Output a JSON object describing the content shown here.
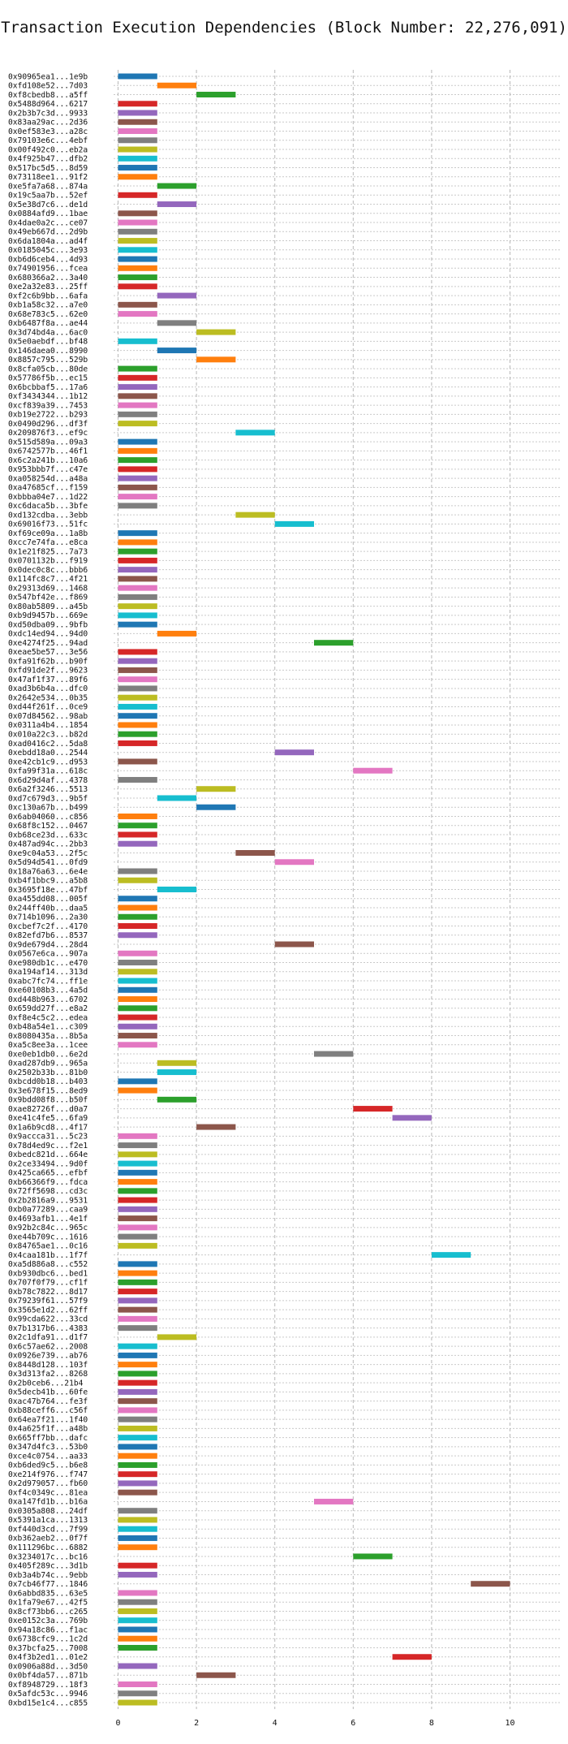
{
  "chart_data": {
    "type": "gantt",
    "title": "Transaction Execution Dependencies (Block Number: 22,276,091)",
    "xlabel": "",
    "ylabel": "",
    "xlim": [
      0,
      10.5
    ],
    "xticks": [
      0,
      2,
      4,
      6,
      8,
      10
    ],
    "grid": true,
    "palette": [
      "#1f77b4",
      "#ff7f0e",
      "#2ca02c",
      "#d62728",
      "#9467bd",
      "#8c564b",
      "#e377c2",
      "#7f7f7f",
      "#bcbd22",
      "#17becf"
    ],
    "transactions": [
      {
        "label": "0x90965ea1...1e9b",
        "start": 0,
        "end": 1
      },
      {
        "label": "0xfd108e52...7d03",
        "start": 1,
        "end": 2
      },
      {
        "label": "0xf8cbedb8...a5ff",
        "start": 2,
        "end": 3
      },
      {
        "label": "0x5488d964...6217",
        "start": 0,
        "end": 1
      },
      {
        "label": "0x2b3b7c3d...9933",
        "start": 0,
        "end": 1
      },
      {
        "label": "0x83aa29ac...2d36",
        "start": 0,
        "end": 1
      },
      {
        "label": "0x0ef583e3...a28c",
        "start": 0,
        "end": 1
      },
      {
        "label": "0x79103e6c...4ebf",
        "start": 0,
        "end": 1
      },
      {
        "label": "0x00f492c0...eb2a",
        "start": 0,
        "end": 1
      },
      {
        "label": "0x4f925b47...dfb2",
        "start": 0,
        "end": 1
      },
      {
        "label": "0x517bc5d5...8d59",
        "start": 0,
        "end": 1
      },
      {
        "label": "0x73118ee1...91f2",
        "start": 0,
        "end": 1
      },
      {
        "label": "0xe5fa7a68...874a",
        "start": 1,
        "end": 2
      },
      {
        "label": "0x19c5aa7b...52ef",
        "start": 0,
        "end": 1
      },
      {
        "label": "0x5e38d7c6...de1d",
        "start": 1,
        "end": 2
      },
      {
        "label": "0x0884afd9...1bae",
        "start": 0,
        "end": 1
      },
      {
        "label": "0x4dae0a2c...ce07",
        "start": 0,
        "end": 1
      },
      {
        "label": "0x49eb667d...2d9b",
        "start": 0,
        "end": 1
      },
      {
        "label": "0x6da1804a...ad4f",
        "start": 0,
        "end": 1
      },
      {
        "label": "0x0185045c...3e93",
        "start": 0,
        "end": 1
      },
      {
        "label": "0xb6d6ceb4...4d93",
        "start": 0,
        "end": 1
      },
      {
        "label": "0x74901956...fcea",
        "start": 0,
        "end": 1
      },
      {
        "label": "0x680366a2...3a40",
        "start": 0,
        "end": 1
      },
      {
        "label": "0xe2a32e83...25ff",
        "start": 0,
        "end": 1
      },
      {
        "label": "0xf2c6b9bb...6afa",
        "start": 1,
        "end": 2
      },
      {
        "label": "0xb1a58c32...a7e0",
        "start": 0,
        "end": 1
      },
      {
        "label": "0x68e783c5...62e0",
        "start": 0,
        "end": 1
      },
      {
        "label": "0xb6487f8a...ae44",
        "start": 1,
        "end": 2
      },
      {
        "label": "0x3d74bd4a...6ac0",
        "start": 2,
        "end": 3
      },
      {
        "label": "0x5e0aebdf...bf48",
        "start": 0,
        "end": 1
      },
      {
        "label": "0x146daea0...8990",
        "start": 1,
        "end": 2
      },
      {
        "label": "0x8857c795...529b",
        "start": 2,
        "end": 3
      },
      {
        "label": "0x8cfa05cb...80de",
        "start": 0,
        "end": 1
      },
      {
        "label": "0x57786f5b...ec15",
        "start": 0,
        "end": 1
      },
      {
        "label": "0x6bcbbaf5...17a6",
        "start": 0,
        "end": 1
      },
      {
        "label": "0xf3434344...1b12",
        "start": 0,
        "end": 1
      },
      {
        "label": "0xcf839a39...7453",
        "start": 0,
        "end": 1
      },
      {
        "label": "0xb19e2722...b293",
        "start": 0,
        "end": 1
      },
      {
        "label": "0x0490d296...df3f",
        "start": 0,
        "end": 1
      },
      {
        "label": "0x209876f3...ef9c",
        "start": 3,
        "end": 4
      },
      {
        "label": "0x515d589a...09a3",
        "start": 0,
        "end": 1
      },
      {
        "label": "0x6742577b...46f1",
        "start": 0,
        "end": 1
      },
      {
        "label": "0x6c2a241b...10a6",
        "start": 0,
        "end": 1
      },
      {
        "label": "0x953bbb7f...c47e",
        "start": 0,
        "end": 1
      },
      {
        "label": "0xa058254d...a48a",
        "start": 0,
        "end": 1
      },
      {
        "label": "0xa47685cf...f159",
        "start": 0,
        "end": 1
      },
      {
        "label": "0xbbba04e7...1d22",
        "start": 0,
        "end": 1
      },
      {
        "label": "0xc6daca5b...3bfe",
        "start": 0,
        "end": 1
      },
      {
        "label": "0xd132cdba...3ebb",
        "start": 3,
        "end": 4
      },
      {
        "label": "0x69016f73...51fc",
        "start": 4,
        "end": 5
      },
      {
        "label": "0xf69ce09a...1a8b",
        "start": 0,
        "end": 1
      },
      {
        "label": "0xcc7e74fa...e8ca",
        "start": 0,
        "end": 1
      },
      {
        "label": "0x1e21f825...7a73",
        "start": 0,
        "end": 1
      },
      {
        "label": "0x0701132b...f919",
        "start": 0,
        "end": 1
      },
      {
        "label": "0x0dec0c8c...bbb6",
        "start": 0,
        "end": 1
      },
      {
        "label": "0x114fc8c7...4f21",
        "start": 0,
        "end": 1
      },
      {
        "label": "0x29313d69...1468",
        "start": 0,
        "end": 1
      },
      {
        "label": "0x547bf42e...f869",
        "start": 0,
        "end": 1
      },
      {
        "label": "0x80ab5809...a45b",
        "start": 0,
        "end": 1
      },
      {
        "label": "0xb9d9457b...669e",
        "start": 0,
        "end": 1
      },
      {
        "label": "0xd50dba09...9bfb",
        "start": 0,
        "end": 1
      },
      {
        "label": "0xdc14ed94...94d0",
        "start": 1,
        "end": 2
      },
      {
        "label": "0xe4274f25...94ad",
        "start": 5,
        "end": 6
      },
      {
        "label": "0xeae5be57...3e56",
        "start": 0,
        "end": 1
      },
      {
        "label": "0xfa91f62b...b90f",
        "start": 0,
        "end": 1
      },
      {
        "label": "0xfd91de2f...9623",
        "start": 0,
        "end": 1
      },
      {
        "label": "0x47af1f37...89f6",
        "start": 0,
        "end": 1
      },
      {
        "label": "0xad3b6b4a...dfc0",
        "start": 0,
        "end": 1
      },
      {
        "label": "0x2642e534...0b35",
        "start": 0,
        "end": 1
      },
      {
        "label": "0xd44f261f...0ce9",
        "start": 0,
        "end": 1
      },
      {
        "label": "0x07d84562...98ab",
        "start": 0,
        "end": 1
      },
      {
        "label": "0x0311a4b4...1854",
        "start": 0,
        "end": 1
      },
      {
        "label": "0x010a22c3...b82d",
        "start": 0,
        "end": 1
      },
      {
        "label": "0xad0416c2...5da8",
        "start": 0,
        "end": 1
      },
      {
        "label": "0xebdd18a0...2544",
        "start": 4,
        "end": 5
      },
      {
        "label": "0xe42cb1c9...d953",
        "start": 0,
        "end": 1
      },
      {
        "label": "0xfa99f31a...618c",
        "start": 6,
        "end": 7
      },
      {
        "label": "0x6d29d4af...4378",
        "start": 0,
        "end": 1
      },
      {
        "label": "0x6a2f3246...5513",
        "start": 2,
        "end": 3
      },
      {
        "label": "0xd7c679d3...9b5f",
        "start": 1,
        "end": 2
      },
      {
        "label": "0xc130a67b...b499",
        "start": 2,
        "end": 3
      },
      {
        "label": "0x6ab04060...c856",
        "start": 0,
        "end": 1
      },
      {
        "label": "0x68f8c152...0467",
        "start": 0,
        "end": 1
      },
      {
        "label": "0xb68ce23d...633c",
        "start": 0,
        "end": 1
      },
      {
        "label": "0x487ad94c...2bb3",
        "start": 0,
        "end": 1
      },
      {
        "label": "0xe9c04a53...2f5c",
        "start": 3,
        "end": 4
      },
      {
        "label": "0x5d94d541...0fd9",
        "start": 4,
        "end": 5
      },
      {
        "label": "0x18a76a63...6e4e",
        "start": 0,
        "end": 1
      },
      {
        "label": "0xb4f1bbc9...a5b8",
        "start": 0,
        "end": 1
      },
      {
        "label": "0x3695f18e...47bf",
        "start": 1,
        "end": 2
      },
      {
        "label": "0xa455dd08...005f",
        "start": 0,
        "end": 1
      },
      {
        "label": "0x244ff40b...daa5",
        "start": 0,
        "end": 1
      },
      {
        "label": "0x714b1096...2a30",
        "start": 0,
        "end": 1
      },
      {
        "label": "0xcbef7c2f...4170",
        "start": 0,
        "end": 1
      },
      {
        "label": "0x82efd7b6...8537",
        "start": 0,
        "end": 1
      },
      {
        "label": "0x9de679d4...28d4",
        "start": 4,
        "end": 5
      },
      {
        "label": "0x0567e6ca...907a",
        "start": 0,
        "end": 1
      },
      {
        "label": "0xe980db1c...e470",
        "start": 0,
        "end": 1
      },
      {
        "label": "0xa194af14...313d",
        "start": 0,
        "end": 1
      },
      {
        "label": "0xabc7fc74...ff1e",
        "start": 0,
        "end": 1
      },
      {
        "label": "0xe60108b3...4a5d",
        "start": 0,
        "end": 1
      },
      {
        "label": "0xd448b963...6702",
        "start": 0,
        "end": 1
      },
      {
        "label": "0x659dd27f...e8a2",
        "start": 0,
        "end": 1
      },
      {
        "label": "0xf8e4c5c2...edea",
        "start": 0,
        "end": 1
      },
      {
        "label": "0xb48a54e1...c309",
        "start": 0,
        "end": 1
      },
      {
        "label": "0x8080435a...8b5a",
        "start": 0,
        "end": 1
      },
      {
        "label": "0xa5c8ee3a...1cee",
        "start": 0,
        "end": 1
      },
      {
        "label": "0xe0eb1db0...6e2d",
        "start": 5,
        "end": 6
      },
      {
        "label": "0xad287db9...965a",
        "start": 1,
        "end": 2
      },
      {
        "label": "0x2502b33b...81b0",
        "start": 1,
        "end": 2
      },
      {
        "label": "0xbcdd0b18...b403",
        "start": 0,
        "end": 1
      },
      {
        "label": "0x3e678f15...8ed9",
        "start": 0,
        "end": 1
      },
      {
        "label": "0x9bdd08f8...b50f",
        "start": 1,
        "end": 2
      },
      {
        "label": "0xae82726f...d0a7",
        "start": 6,
        "end": 7
      },
      {
        "label": "0xe41c4fe5...6fa9",
        "start": 7,
        "end": 8
      },
      {
        "label": "0x1a6b9cd8...4f17",
        "start": 2,
        "end": 3
      },
      {
        "label": "0x9accca31...5c23",
        "start": 0,
        "end": 1
      },
      {
        "label": "0x78d4ed9c...f2e1",
        "start": 0,
        "end": 1
      },
      {
        "label": "0xbedc821d...664e",
        "start": 0,
        "end": 1
      },
      {
        "label": "0x2ce33494...9d0f",
        "start": 0,
        "end": 1
      },
      {
        "label": "0x425ca665...efbf",
        "start": 0,
        "end": 1
      },
      {
        "label": "0xb66366f9...fdca",
        "start": 0,
        "end": 1
      },
      {
        "label": "0x72ff5698...cd3c",
        "start": 0,
        "end": 1
      },
      {
        "label": "0x2b2816a9...9531",
        "start": 0,
        "end": 1
      },
      {
        "label": "0xb0a77289...caa9",
        "start": 0,
        "end": 1
      },
      {
        "label": "0x4693afb1...4e1f",
        "start": 0,
        "end": 1
      },
      {
        "label": "0x92b2c84c...965c",
        "start": 0,
        "end": 1
      },
      {
        "label": "0xe44b709c...1616",
        "start": 0,
        "end": 1
      },
      {
        "label": "0x84765ae1...0c16",
        "start": 0,
        "end": 1
      },
      {
        "label": "0x4caa181b...1f7f",
        "start": 8,
        "end": 9
      },
      {
        "label": "0xa5d886a8...c552",
        "start": 0,
        "end": 1
      },
      {
        "label": "0xb930dbc6...bed1",
        "start": 0,
        "end": 1
      },
      {
        "label": "0x707f0f79...cf1f",
        "start": 0,
        "end": 1
      },
      {
        "label": "0xb78c7822...8d17",
        "start": 0,
        "end": 1
      },
      {
        "label": "0x79239f61...57f9",
        "start": 0,
        "end": 1
      },
      {
        "label": "0x3565e1d2...62ff",
        "start": 0,
        "end": 1
      },
      {
        "label": "0x99cda622...33cd",
        "start": 0,
        "end": 1
      },
      {
        "label": "0x7b1317b6...4383",
        "start": 0,
        "end": 1
      },
      {
        "label": "0x2c1dfa91...d1f7",
        "start": 1,
        "end": 2
      },
      {
        "label": "0x6c57ae62...2008",
        "start": 0,
        "end": 1
      },
      {
        "label": "0x0926e739...ab76",
        "start": 0,
        "end": 1
      },
      {
        "label": "0x8448d128...103f",
        "start": 0,
        "end": 1
      },
      {
        "label": "0x3d313fa2...8268",
        "start": 0,
        "end": 1
      },
      {
        "label": "0x2b0ceb6...21b4",
        "start": 0,
        "end": 1
      },
      {
        "label": "0x5decb41b...60fe",
        "start": 0,
        "end": 1
      },
      {
        "label": "0xac47b764...fe3f",
        "start": 0,
        "end": 1
      },
      {
        "label": "0xb88ceff6...c56f",
        "start": 0,
        "end": 1
      },
      {
        "label": "0x64ea7f21...1f40",
        "start": 0,
        "end": 1
      },
      {
        "label": "0x4a625f1f...a48b",
        "start": 0,
        "end": 1
      },
      {
        "label": "0x665ff7bb...dafc",
        "start": 0,
        "end": 1
      },
      {
        "label": "0x347d4fc3...53b0",
        "start": 0,
        "end": 1
      },
      {
        "label": "0xce4c0754...aa33",
        "start": 0,
        "end": 1
      },
      {
        "label": "0xb6ded9c5...b6e8",
        "start": 0,
        "end": 1
      },
      {
        "label": "0xe214f976...f747",
        "start": 0,
        "end": 1
      },
      {
        "label": "0x2d979057...fb60",
        "start": 0,
        "end": 1
      },
      {
        "label": "0xf4c0349c...81ea",
        "start": 0,
        "end": 1
      },
      {
        "label": "0xa147fd1b...b16a",
        "start": 5,
        "end": 6
      },
      {
        "label": "0x0305a808...24df",
        "start": 0,
        "end": 1
      },
      {
        "label": "0x5391a1ca...1313",
        "start": 0,
        "end": 1
      },
      {
        "label": "0xf440d3cd...7f99",
        "start": 0,
        "end": 1
      },
      {
        "label": "0xb362aeb2...0f7f",
        "start": 0,
        "end": 1
      },
      {
        "label": "0x111296bc...6882",
        "start": 0,
        "end": 1
      },
      {
        "label": "0x3234017c...bc16",
        "start": 6,
        "end": 7
      },
      {
        "label": "0x405f289c...3d1b",
        "start": 0,
        "end": 1
      },
      {
        "label": "0xb3a4b74c...9ebb",
        "start": 0,
        "end": 1
      },
      {
        "label": "0x7cb46f77...1846",
        "start": 9,
        "end": 10
      },
      {
        "label": "0x6abbd835...63e5",
        "start": 0,
        "end": 1
      },
      {
        "label": "0x1fa79e67...42f5",
        "start": 0,
        "end": 1
      },
      {
        "label": "0x8cf73bb6...c265",
        "start": 0,
        "end": 1
      },
      {
        "label": "0xe0152c3a...769b",
        "start": 0,
        "end": 1
      },
      {
        "label": "0x94a18c86...f1ac",
        "start": 0,
        "end": 1
      },
      {
        "label": "0x6738cfc9...1c2d",
        "start": 0,
        "end": 1
      },
      {
        "label": "0x37bcfa25...7008",
        "start": 0,
        "end": 1
      },
      {
        "label": "0x4f3b2ed1...01e2",
        "start": 7,
        "end": 8
      },
      {
        "label": "0x0906a88d...3d50",
        "start": 0,
        "end": 1
      },
      {
        "label": "0x0bf4da57...871b",
        "start": 2,
        "end": 3
      },
      {
        "label": "0xf8948729...18f3",
        "start": 0,
        "end": 1
      },
      {
        "label": "0x5afdc53c...9946",
        "start": 0,
        "end": 1
      },
      {
        "label": "0xbd15e1c4...c855",
        "start": 0,
        "end": 1
      }
    ]
  }
}
